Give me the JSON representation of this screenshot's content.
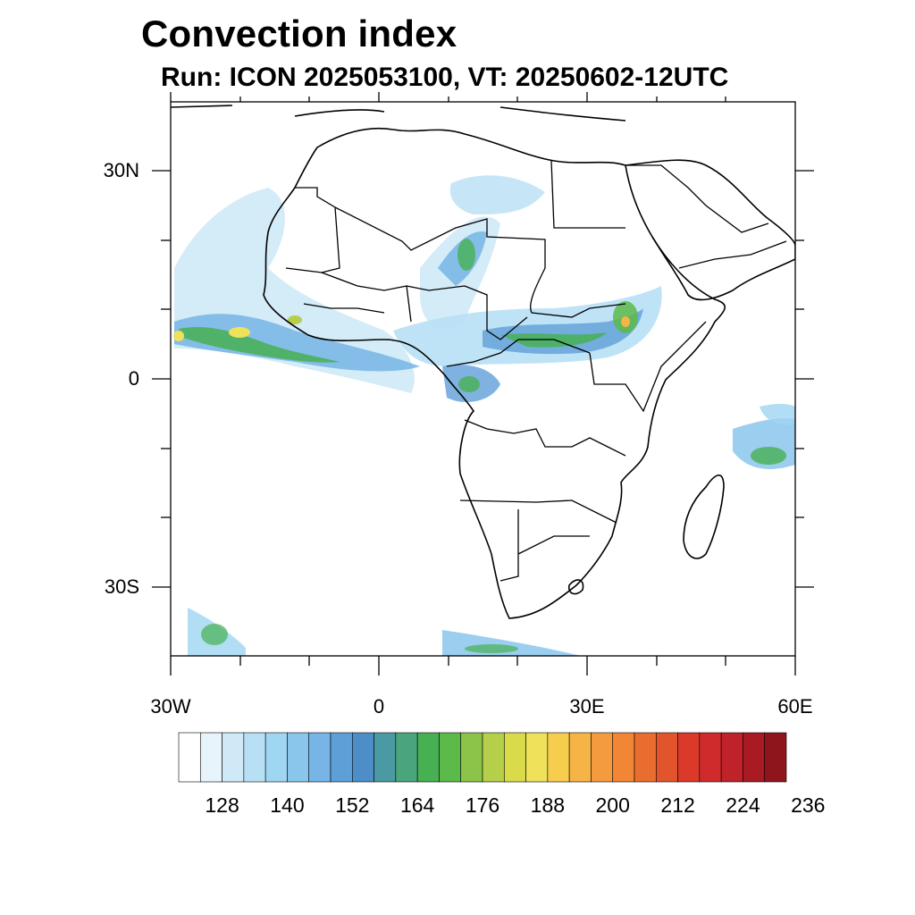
{
  "title": "Convection index",
  "subtitle": "Run: ICON 2025053100,  VT: 20250602-12UTC",
  "axes": {
    "lon_labels": [
      "30W",
      "0",
      "30E",
      "60E"
    ],
    "lat_labels": [
      "30N",
      "0",
      "30S"
    ],
    "lon_range": [
      -30,
      60
    ],
    "lat_range": [
      -40,
      40
    ]
  },
  "colorbar": {
    "labels": [
      "128",
      "140",
      "152",
      "164",
      "176",
      "188",
      "200",
      "212",
      "224",
      "236"
    ],
    "colors": [
      "#ffffff",
      "#e8f4fb",
      "#cfe9f7",
      "#b8e0f5",
      "#9fd6f2",
      "#8ac6ec",
      "#76b5e5",
      "#5f9fd8",
      "#4e8ec8",
      "#4a9aa3",
      "#4aa57c",
      "#47b052",
      "#5cba4a",
      "#8cc44a",
      "#b5cf4a",
      "#dadb4a",
      "#f0e15a",
      "#f7cd4e",
      "#f6b447",
      "#f59b3f",
      "#f08636",
      "#ea6d30",
      "#e2552c",
      "#db3a2b",
      "#cf2b2d",
      "#bf2229",
      "#a81b22",
      "#8f151d"
    ]
  }
}
